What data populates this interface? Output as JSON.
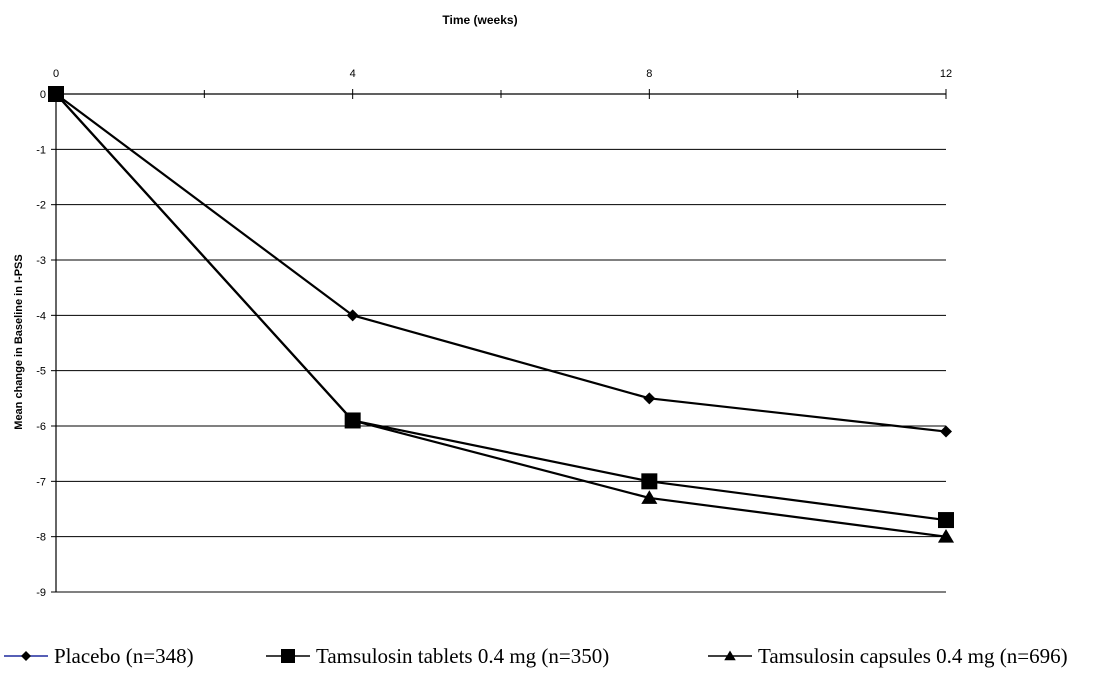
{
  "chart_data": {
    "type": "line",
    "xlabel": "Time (weeks)",
    "ylabel": "Mean change in Baseline in I-PSS",
    "x": [
      0,
      4,
      8,
      12
    ],
    "xlim": [
      0,
      12
    ],
    "ylim": [
      -9,
      0
    ],
    "xticks": [
      "0",
      "4",
      "8",
      "12"
    ],
    "yticks": [
      "0",
      "-1",
      "-2",
      "-3",
      "-4",
      "-5",
      "-6",
      "-7",
      "-8",
      "-9"
    ],
    "x_axis_position": "top",
    "grid": "horizontal",
    "legend_position": "bottom",
    "series": [
      {
        "name": "Placebo (n=348)",
        "marker": "diamond",
        "values": [
          0,
          -4.0,
          -5.5,
          -6.1
        ]
      },
      {
        "name": "Tamsulosin tablets 0.4 mg (n=350)",
        "marker": "square",
        "values": [
          0,
          -5.9,
          -7.0,
          -7.7
        ]
      },
      {
        "name": "Tamsulosin capsules 0.4 mg (n=696)",
        "marker": "triangle",
        "values": [
          0,
          -5.9,
          -7.3,
          -8.0
        ]
      }
    ],
    "colors": {
      "lines": "#000000",
      "placebo_legend_line": "#1f2a9e"
    }
  }
}
